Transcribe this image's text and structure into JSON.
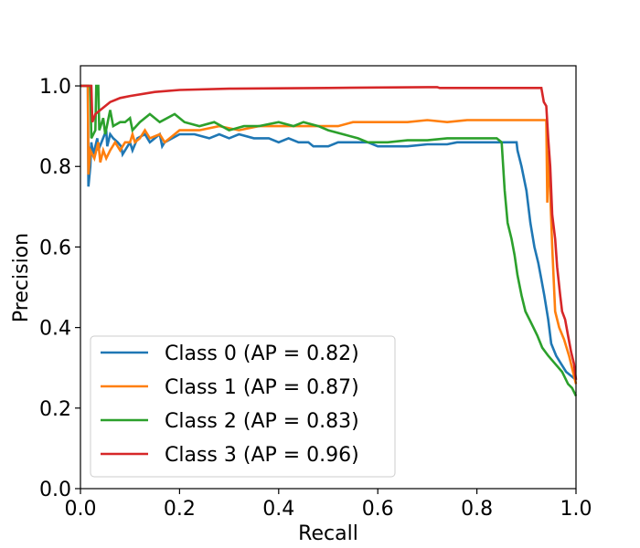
{
  "chart_data": {
    "type": "line",
    "title": "",
    "xlabel": "Recall",
    "ylabel": "Precision",
    "xlim": [
      0.0,
      1.0
    ],
    "ylim": [
      0.0,
      1.05
    ],
    "xticks": [
      "0.0",
      "0.2",
      "0.4",
      "0.6",
      "0.8",
      "1.0"
    ],
    "yticks": [
      "0.0",
      "0.2",
      "0.4",
      "0.6",
      "0.8",
      "1.0"
    ],
    "grid": false,
    "legend_position": "lower-left",
    "series": [
      {
        "name": "Class 0 (AP = 0.82)",
        "color": "#1f77b4",
        "points": [
          [
            0.0,
            1.0
          ],
          [
            0.015,
            1.0
          ],
          [
            0.016,
            0.75
          ],
          [
            0.02,
            0.8
          ],
          [
            0.022,
            0.86
          ],
          [
            0.026,
            0.83
          ],
          [
            0.034,
            0.87
          ],
          [
            0.036,
            0.84
          ],
          [
            0.052,
            0.89
          ],
          [
            0.054,
            0.85
          ],
          [
            0.06,
            0.88
          ],
          [
            0.066,
            0.87
          ],
          [
            0.075,
            0.86
          ],
          [
            0.082,
            0.85
          ],
          [
            0.085,
            0.83
          ],
          [
            0.1,
            0.86
          ],
          [
            0.105,
            0.84
          ],
          [
            0.115,
            0.87
          ],
          [
            0.13,
            0.88
          ],
          [
            0.14,
            0.86
          ],
          [
            0.16,
            0.88
          ],
          [
            0.165,
            0.85
          ],
          [
            0.17,
            0.86
          ],
          [
            0.2,
            0.88
          ],
          [
            0.23,
            0.88
          ],
          [
            0.26,
            0.87
          ],
          [
            0.28,
            0.88
          ],
          [
            0.3,
            0.87
          ],
          [
            0.32,
            0.88
          ],
          [
            0.35,
            0.87
          ],
          [
            0.38,
            0.87
          ],
          [
            0.4,
            0.86
          ],
          [
            0.42,
            0.87
          ],
          [
            0.44,
            0.86
          ],
          [
            0.46,
            0.86
          ],
          [
            0.47,
            0.85
          ],
          [
            0.5,
            0.85
          ],
          [
            0.52,
            0.86
          ],
          [
            0.55,
            0.86
          ],
          [
            0.58,
            0.86
          ],
          [
            0.6,
            0.85
          ],
          [
            0.62,
            0.85
          ],
          [
            0.66,
            0.85
          ],
          [
            0.7,
            0.855
          ],
          [
            0.74,
            0.855
          ],
          [
            0.76,
            0.86
          ],
          [
            0.8,
            0.86
          ],
          [
            0.84,
            0.86
          ],
          [
            0.88,
            0.86
          ],
          [
            0.882,
            0.84
          ],
          [
            0.89,
            0.8
          ],
          [
            0.9,
            0.74
          ],
          [
            0.908,
            0.66
          ],
          [
            0.916,
            0.6
          ],
          [
            0.924,
            0.56
          ],
          [
            0.93,
            0.52
          ],
          [
            0.936,
            0.48
          ],
          [
            0.944,
            0.42
          ],
          [
            0.95,
            0.36
          ],
          [
            0.96,
            0.33
          ],
          [
            0.97,
            0.31
          ],
          [
            0.98,
            0.29
          ],
          [
            0.99,
            0.28
          ],
          [
            1.0,
            0.27
          ]
        ]
      },
      {
        "name": "Class 1 (AP = 0.87)",
        "color": "#ff7f0e",
        "points": [
          [
            0.0,
            1.0
          ],
          [
            0.015,
            1.0
          ],
          [
            0.016,
            0.78
          ],
          [
            0.02,
            0.84
          ],
          [
            0.028,
            0.82
          ],
          [
            0.036,
            0.86
          ],
          [
            0.04,
            0.81
          ],
          [
            0.046,
            0.84
          ],
          [
            0.052,
            0.82
          ],
          [
            0.06,
            0.84
          ],
          [
            0.07,
            0.86
          ],
          [
            0.08,
            0.84
          ],
          [
            0.09,
            0.86
          ],
          [
            0.1,
            0.86
          ],
          [
            0.105,
            0.88
          ],
          [
            0.11,
            0.86
          ],
          [
            0.12,
            0.87
          ],
          [
            0.13,
            0.89
          ],
          [
            0.14,
            0.87
          ],
          [
            0.16,
            0.88
          ],
          [
            0.17,
            0.86
          ],
          [
            0.18,
            0.87
          ],
          [
            0.2,
            0.89
          ],
          [
            0.24,
            0.89
          ],
          [
            0.28,
            0.9
          ],
          [
            0.32,
            0.89
          ],
          [
            0.36,
            0.9
          ],
          [
            0.4,
            0.9
          ],
          [
            0.44,
            0.9
          ],
          [
            0.48,
            0.9
          ],
          [
            0.52,
            0.9
          ],
          [
            0.55,
            0.91
          ],
          [
            0.58,
            0.91
          ],
          [
            0.62,
            0.91
          ],
          [
            0.66,
            0.91
          ],
          [
            0.7,
            0.915
          ],
          [
            0.74,
            0.91
          ],
          [
            0.78,
            0.915
          ],
          [
            0.82,
            0.915
          ],
          [
            0.86,
            0.915
          ],
          [
            0.9,
            0.915
          ],
          [
            0.94,
            0.915
          ],
          [
            0.942,
            0.71
          ],
          [
            0.944,
            0.84
          ],
          [
            0.946,
            0.8
          ],
          [
            0.952,
            0.6
          ],
          [
            0.958,
            0.44
          ],
          [
            0.966,
            0.4
          ],
          [
            0.976,
            0.37
          ],
          [
            0.986,
            0.33
          ],
          [
            0.994,
            0.29
          ],
          [
            1.0,
            0.26
          ]
        ]
      },
      {
        "name": "Class 2 (AP = 0.83)",
        "color": "#2ca02c",
        "points": [
          [
            0.0,
            1.0
          ],
          [
            0.02,
            1.0
          ],
          [
            0.022,
            0.87
          ],
          [
            0.03,
            0.89
          ],
          [
            0.032,
            1.0
          ],
          [
            0.036,
            1.0
          ],
          [
            0.038,
            0.89
          ],
          [
            0.046,
            0.92
          ],
          [
            0.05,
            0.88
          ],
          [
            0.06,
            0.94
          ],
          [
            0.066,
            0.9
          ],
          [
            0.08,
            0.91
          ],
          [
            0.09,
            0.91
          ],
          [
            0.1,
            0.92
          ],
          [
            0.105,
            0.89
          ],
          [
            0.12,
            0.91
          ],
          [
            0.14,
            0.93
          ],
          [
            0.16,
            0.91
          ],
          [
            0.19,
            0.93
          ],
          [
            0.21,
            0.91
          ],
          [
            0.24,
            0.9
          ],
          [
            0.27,
            0.91
          ],
          [
            0.3,
            0.89
          ],
          [
            0.33,
            0.9
          ],
          [
            0.36,
            0.9
          ],
          [
            0.4,
            0.91
          ],
          [
            0.43,
            0.9
          ],
          [
            0.45,
            0.91
          ],
          [
            0.48,
            0.9
          ],
          [
            0.5,
            0.89
          ],
          [
            0.53,
            0.88
          ],
          [
            0.56,
            0.87
          ],
          [
            0.58,
            0.86
          ],
          [
            0.6,
            0.86
          ],
          [
            0.62,
            0.86
          ],
          [
            0.66,
            0.865
          ],
          [
            0.7,
            0.865
          ],
          [
            0.74,
            0.87
          ],
          [
            0.78,
            0.87
          ],
          [
            0.82,
            0.87
          ],
          [
            0.84,
            0.87
          ],
          [
            0.85,
            0.86
          ],
          [
            0.852,
            0.82
          ],
          [
            0.856,
            0.74
          ],
          [
            0.862,
            0.66
          ],
          [
            0.87,
            0.62
          ],
          [
            0.876,
            0.58
          ],
          [
            0.882,
            0.53
          ],
          [
            0.89,
            0.48
          ],
          [
            0.898,
            0.44
          ],
          [
            0.906,
            0.42
          ],
          [
            0.914,
            0.4
          ],
          [
            0.922,
            0.38
          ],
          [
            0.932,
            0.35
          ],
          [
            0.944,
            0.33
          ],
          [
            0.958,
            0.31
          ],
          [
            0.972,
            0.29
          ],
          [
            0.984,
            0.26
          ],
          [
            0.992,
            0.25
          ],
          [
            1.0,
            0.23
          ]
        ]
      },
      {
        "name": "Class 3 (AP = 0.96)",
        "color": "#d62728",
        "points": [
          [
            0.0,
            1.0
          ],
          [
            0.022,
            1.0
          ],
          [
            0.024,
            0.91
          ],
          [
            0.03,
            0.93
          ],
          [
            0.04,
            0.94
          ],
          [
            0.05,
            0.95
          ],
          [
            0.06,
            0.96
          ],
          [
            0.08,
            0.97
          ],
          [
            0.1,
            0.975
          ],
          [
            0.15,
            0.985
          ],
          [
            0.2,
            0.99
          ],
          [
            0.3,
            0.993
          ],
          [
            0.4,
            0.994
          ],
          [
            0.5,
            0.995
          ],
          [
            0.6,
            0.996
          ],
          [
            0.7,
            0.997
          ],
          [
            0.72,
            0.997
          ],
          [
            0.725,
            0.995
          ],
          [
            0.8,
            0.995
          ],
          [
            0.9,
            0.995
          ],
          [
            0.93,
            0.995
          ],
          [
            0.935,
            0.96
          ],
          [
            0.94,
            0.95
          ],
          [
            0.944,
            0.87
          ],
          [
            0.948,
            0.8
          ],
          [
            0.952,
            0.68
          ],
          [
            0.958,
            0.62
          ],
          [
            0.962,
            0.55
          ],
          [
            0.968,
            0.48
          ],
          [
            0.972,
            0.44
          ],
          [
            0.978,
            0.42
          ],
          [
            0.984,
            0.38
          ],
          [
            0.99,
            0.34
          ],
          [
            0.996,
            0.31
          ],
          [
            1.0,
            0.27
          ]
        ]
      }
    ]
  }
}
